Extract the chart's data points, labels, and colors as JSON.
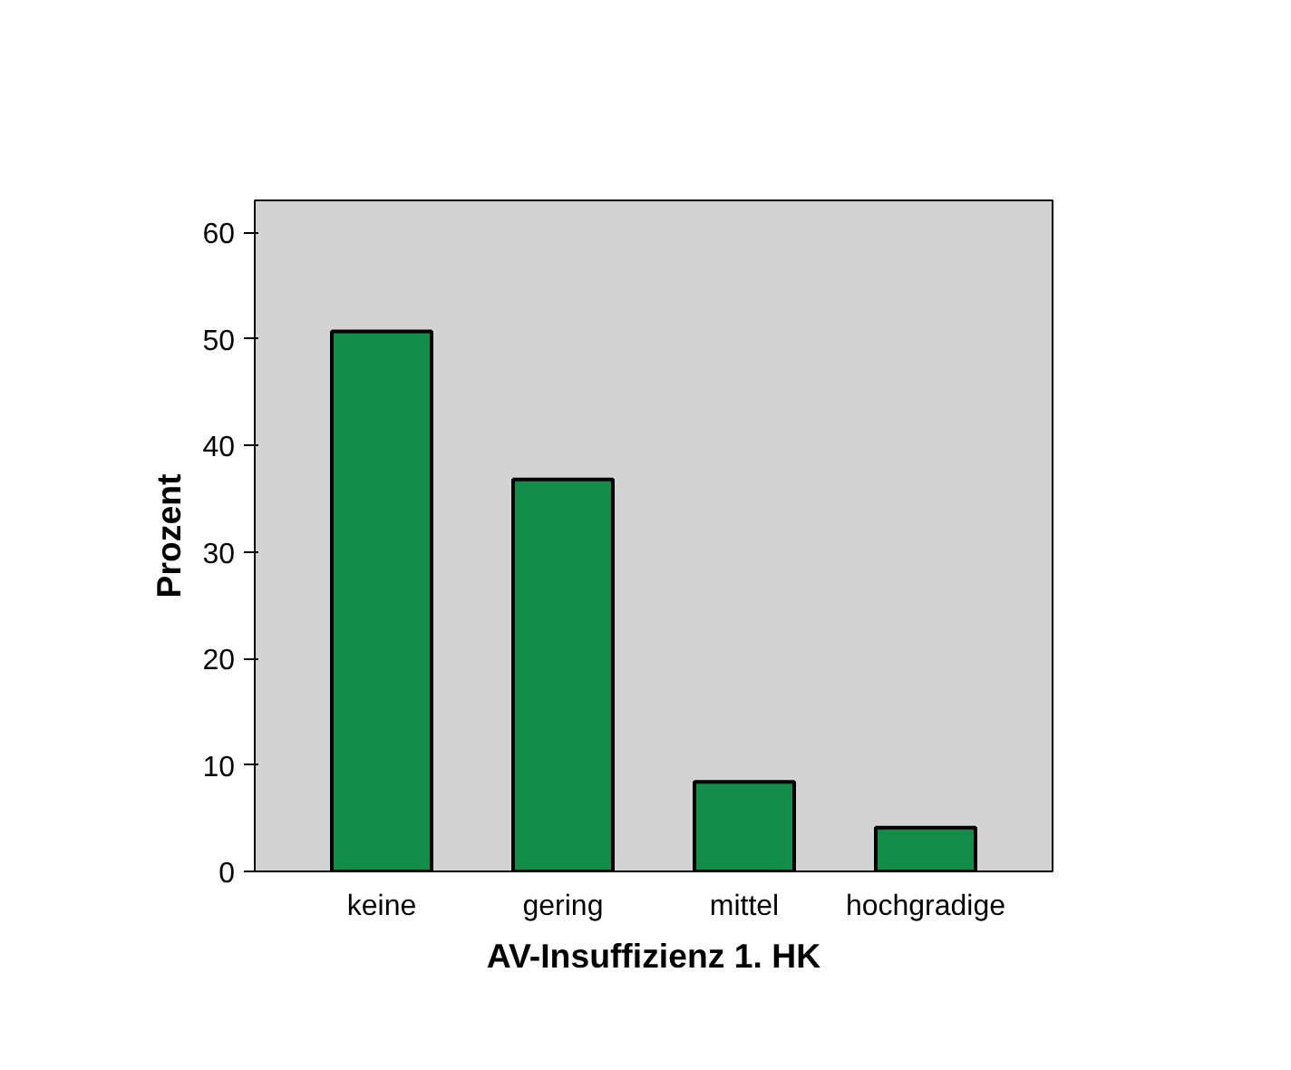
{
  "chart_data": {
    "type": "bar",
    "xlabel": "AV-Insuffizienz 1. HK",
    "ylabel": "Prozent",
    "categories": [
      "keine",
      "gering",
      "mittel",
      "hochgradige"
    ],
    "values": [
      50.7,
      36.8,
      8.4,
      4.1
    ],
    "color": "#138d4a",
    "ylim": [
      0,
      63
    ],
    "yticks": [
      0,
      10,
      20,
      30,
      40,
      50,
      60
    ],
    "grid": false
  }
}
